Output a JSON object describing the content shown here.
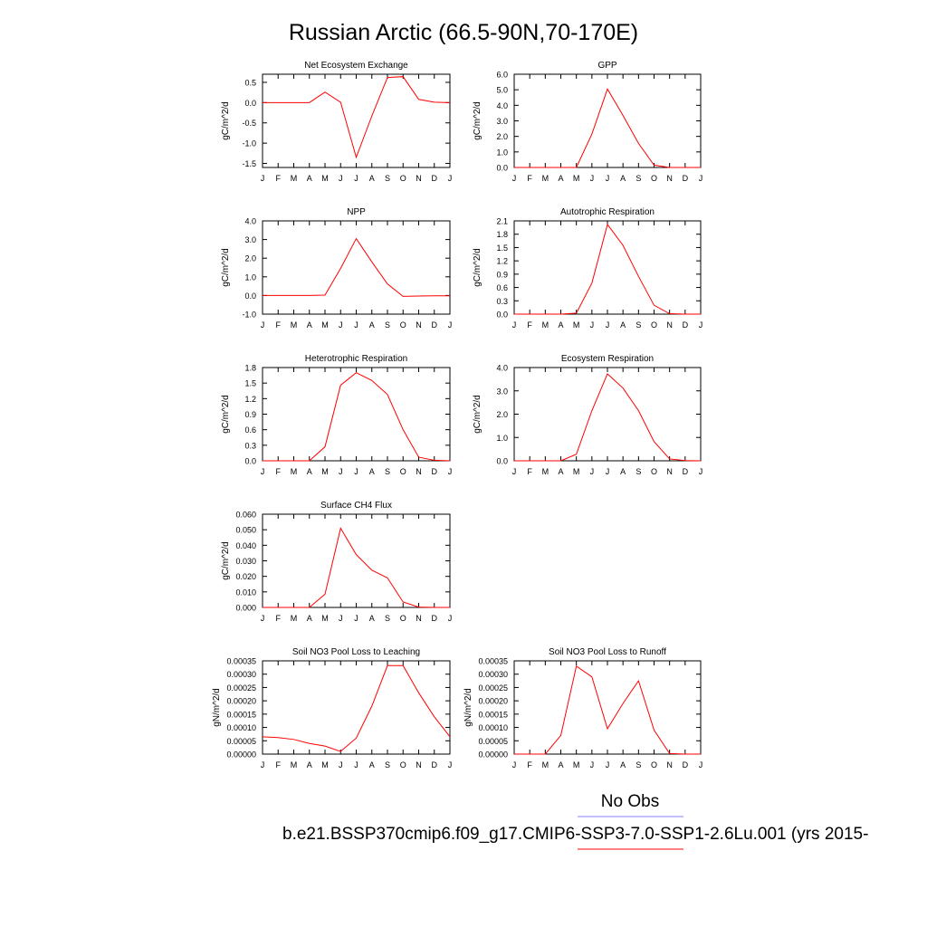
{
  "page": {
    "title": "Russian Arctic (66.5-90N,70-170E)",
    "legend": {
      "obs_label": "No Obs",
      "obs_color": "#8080ff",
      "model_label": "b.e21.BSSP370cmip6.f09_g17.CMIP6-SSP3-7.0-SSP1-2.6Lu.001 (yrs 2015-",
      "model_color": "#ff0000"
    }
  },
  "chart_data": [
    {
      "type": "line",
      "title": "Net Ecosystem Exchange",
      "ylabel": "gC/m^2/d",
      "x": [
        "J",
        "F",
        "M",
        "A",
        "M",
        "J",
        "J",
        "A",
        "S",
        "O",
        "N",
        "D",
        "J"
      ],
      "ylim": [
        -1.6,
        0.7
      ],
      "yticks": [
        0.5,
        0.0,
        -0.5,
        -1.0,
        -1.5
      ],
      "yticklabels": [
        "0.5",
        "0.0",
        "-0.5",
        "-1.0",
        "-1.5"
      ],
      "series": [
        {
          "color": "#ff0000",
          "values": [
            0.0,
            0.0,
            0.0,
            0.0,
            0.26,
            0.01,
            -1.35,
            -0.33,
            0.62,
            0.64,
            0.08,
            0.01,
            0.0
          ]
        }
      ]
    },
    {
      "type": "line",
      "title": "GPP",
      "ylabel": "gC/m^2/d",
      "x": [
        "J",
        "F",
        "M",
        "A",
        "M",
        "J",
        "J",
        "A",
        "S",
        "O",
        "N",
        "D",
        "J"
      ],
      "ylim": [
        0,
        6.0
      ],
      "yticks": [
        0,
        1,
        2,
        3,
        4,
        5,
        6
      ],
      "yticklabels": [
        "0.0",
        "1.0",
        "2.0",
        "3.0",
        "4.0",
        "5.0",
        "6.0"
      ],
      "series": [
        {
          "color": "#ff0000",
          "values": [
            0.0,
            0.0,
            0.0,
            0.0,
            0.0,
            2.15,
            5.05,
            3.35,
            1.55,
            0.15,
            0.0,
            0.0,
            0.0
          ]
        }
      ]
    },
    {
      "type": "line",
      "title": "NPP",
      "ylabel": "gC/m^2/d",
      "x": [
        "J",
        "F",
        "M",
        "A",
        "M",
        "J",
        "J",
        "A",
        "S",
        "O",
        "N",
        "D",
        "J"
      ],
      "ylim": [
        -1.0,
        4.0
      ],
      "yticks": [
        4,
        3,
        2,
        1,
        0,
        -1
      ],
      "yticklabels": [
        "4.0",
        "3.0",
        "2.0",
        "1.0",
        "0.0",
        "-1.0"
      ],
      "series": [
        {
          "color": "#ff0000",
          "values": [
            0.0,
            0.0,
            0.0,
            0.0,
            0.02,
            1.45,
            3.05,
            1.8,
            0.62,
            -0.05,
            -0.03,
            -0.02,
            -0.02
          ]
        }
      ]
    },
    {
      "type": "line",
      "title": "Autotrophic Respiration",
      "ylabel": "gC/m^2/d",
      "x": [
        "J",
        "F",
        "M",
        "A",
        "M",
        "J",
        "J",
        "A",
        "S",
        "O",
        "N",
        "D",
        "J"
      ],
      "ylim": [
        0,
        2.1
      ],
      "yticks": [
        0,
        0.3,
        0.6,
        0.9,
        1.2,
        1.5,
        1.8,
        2.1
      ],
      "yticklabels": [
        "0.0",
        "0.3",
        "0.6",
        "0.9",
        "1.2",
        "1.5",
        "1.8",
        "2.1"
      ],
      "series": [
        {
          "color": "#ff0000",
          "values": [
            0.0,
            0.0,
            0.0,
            0.0,
            0.02,
            0.7,
            2.02,
            1.55,
            0.85,
            0.2,
            0.01,
            0.0,
            0.0
          ]
        }
      ]
    },
    {
      "type": "line",
      "title": "Heterotrophic Respiration",
      "ylabel": "gC/m^2/d",
      "x": [
        "J",
        "F",
        "M",
        "A",
        "M",
        "J",
        "J",
        "A",
        "S",
        "O",
        "N",
        "D",
        "J"
      ],
      "ylim": [
        0,
        1.8
      ],
      "yticks": [
        0,
        0.3,
        0.6,
        0.9,
        1.2,
        1.5,
        1.8
      ],
      "yticklabels": [
        "0.0",
        "0.3",
        "0.6",
        "0.9",
        "1.2",
        "1.5",
        "1.8"
      ],
      "series": [
        {
          "color": "#ff0000",
          "values": [
            0.0,
            0.0,
            0.0,
            0.0,
            0.27,
            1.46,
            1.7,
            1.55,
            1.28,
            0.6,
            0.07,
            0.01,
            0.0
          ]
        }
      ]
    },
    {
      "type": "line",
      "title": "Ecosystem Respiration",
      "ylabel": "gC/m^2/d",
      "x": [
        "J",
        "F",
        "M",
        "A",
        "M",
        "J",
        "J",
        "A",
        "S",
        "O",
        "N",
        "D",
        "J"
      ],
      "ylim": [
        0,
        4.0
      ],
      "yticks": [
        0,
        1,
        2,
        3,
        4
      ],
      "yticklabels": [
        "0.0",
        "1.0",
        "2.0",
        "3.0",
        "4.0"
      ],
      "series": [
        {
          "color": "#ff0000",
          "values": [
            0.0,
            0.0,
            0.0,
            0.0,
            0.28,
            2.15,
            3.73,
            3.12,
            2.15,
            0.82,
            0.08,
            0.01,
            0.0
          ]
        }
      ]
    },
    {
      "type": "line",
      "title": "Surface CH4 Flux",
      "ylabel": "gC/m^2/d",
      "x": [
        "J",
        "F",
        "M",
        "A",
        "M",
        "J",
        "J",
        "A",
        "S",
        "O",
        "N",
        "D",
        "J"
      ],
      "ylim": [
        0,
        0.06
      ],
      "yticks": [
        0,
        0.01,
        0.02,
        0.03,
        0.04,
        0.05,
        0.06
      ],
      "yticklabels": [
        "0.000",
        "0.010",
        "0.020",
        "0.030",
        "0.040",
        "0.050",
        "0.060"
      ],
      "series": [
        {
          "color": "#ff0000",
          "values": [
            0.0,
            0.0,
            0.0,
            0.0,
            0.0085,
            0.051,
            0.034,
            0.024,
            0.019,
            0.0035,
            0.0002,
            0.0,
            0.0
          ]
        }
      ]
    },
    {
      "type": "line",
      "title": "Soil NO3 Pool Loss to Leaching",
      "ylabel": "gN/m^2/d",
      "x": [
        "J",
        "F",
        "M",
        "A",
        "M",
        "J",
        "J",
        "A",
        "S",
        "O",
        "N",
        "D",
        "J"
      ],
      "ylim": [
        0,
        0.00035
      ],
      "yticks": [
        0,
        5e-05,
        0.0001,
        0.00015,
        0.0002,
        0.00025,
        0.0003,
        0.00035
      ],
      "yticklabels": [
        "0.00000",
        "0.00005",
        "0.00010",
        "0.00015",
        "0.00020",
        "0.00025",
        "0.00030",
        "0.00035"
      ],
      "series": [
        {
          "color": "#ff0000",
          "values": [
            6.5e-05,
            6.2e-05,
            5.5e-05,
            4e-05,
            3e-05,
            1e-05,
            6e-05,
            0.00018,
            0.000332,
            0.000332,
            0.00023,
            0.00014,
            6.5e-05
          ]
        }
      ]
    },
    {
      "type": "line",
      "title": "Soil NO3 Pool Loss to Runoff",
      "ylabel": "gN/m^2/d",
      "x": [
        "J",
        "F",
        "M",
        "A",
        "M",
        "J",
        "J",
        "A",
        "S",
        "O",
        "N",
        "D",
        "J"
      ],
      "ylim": [
        0,
        0.00035
      ],
      "yticks": [
        0,
        5e-05,
        0.0001,
        0.00015,
        0.0002,
        0.00025,
        0.0003,
        0.00035
      ],
      "yticklabels": [
        "0.00000",
        "0.00005",
        "0.00010",
        "0.00015",
        "0.00020",
        "0.00025",
        "0.00030",
        "0.00035"
      ],
      "series": [
        {
          "color": "#ff0000",
          "values": [
            0.0,
            0.0,
            0.0,
            7e-05,
            0.00033,
            0.00029,
            9.5e-05,
            0.00019,
            0.000275,
            9e-05,
            2e-06,
            0.0,
            0.0
          ]
        }
      ]
    }
  ]
}
